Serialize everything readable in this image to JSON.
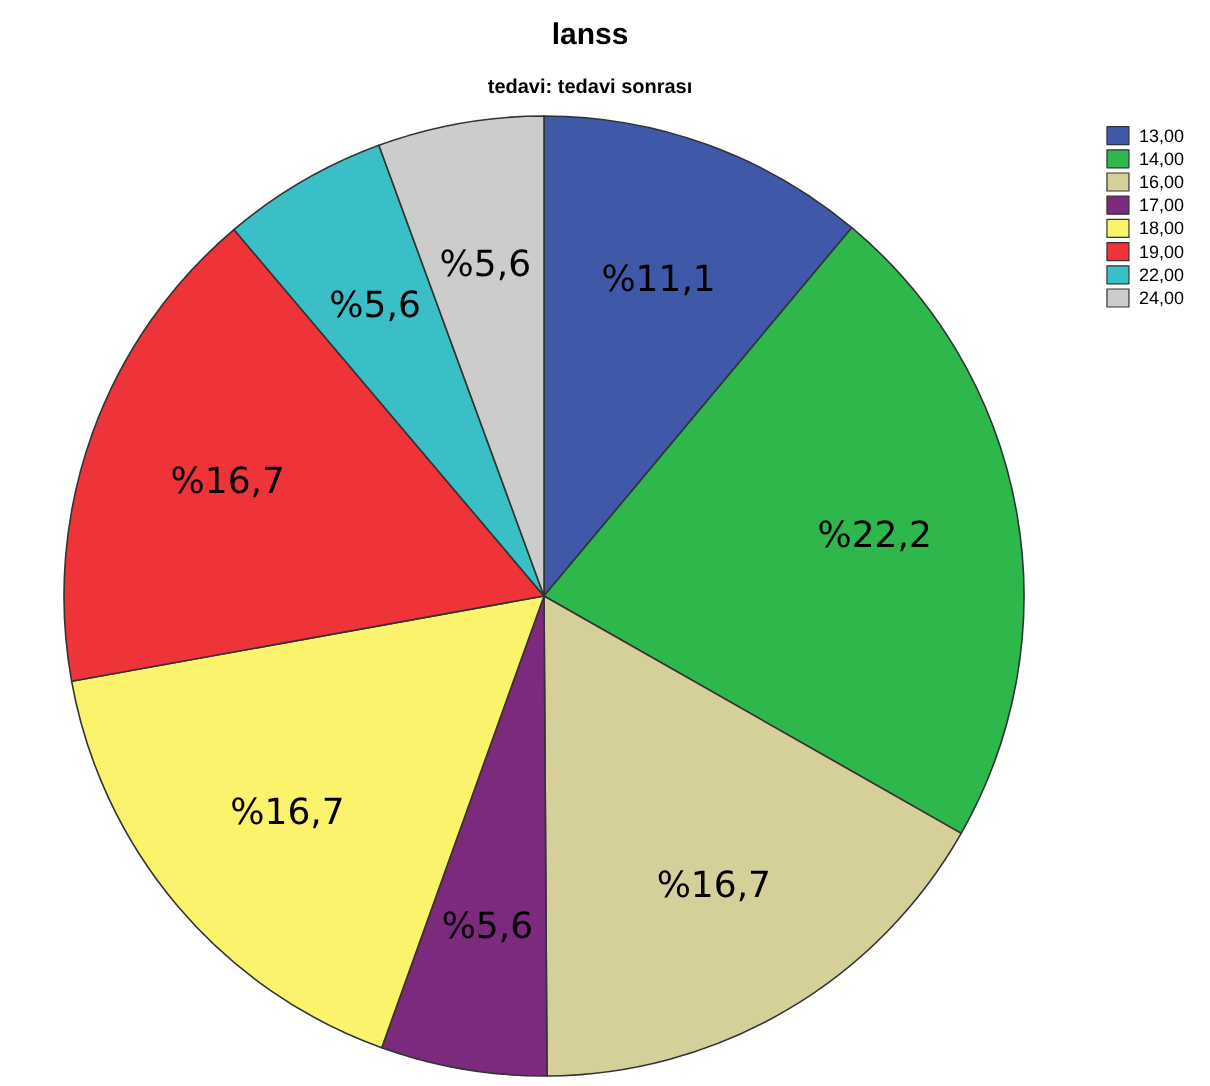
{
  "chart_data": {
    "type": "pie",
    "title": "lanss",
    "subtitle": "tedavi: tedavi sonrası",
    "categories": [
      "13,00",
      "14,00",
      "16,00",
      "17,00",
      "18,00",
      "19,00",
      "22,00",
      "24,00"
    ],
    "values": [
      11.1,
      22.2,
      16.7,
      5.6,
      16.7,
      16.7,
      5.6,
      5.6
    ],
    "colors": [
      "#3f58a8",
      "#2eb84b",
      "#d5cf9a",
      "#7b2a7d",
      "#fbf36c",
      "#ee3339",
      "#3bbfc6",
      "#cccccc"
    ],
    "value_labels": [
      "%11,1",
      "%22,2",
      "%16,7",
      "%5,6",
      "%16,7",
      "%16,7",
      "%5,6",
      "%5,6"
    ],
    "legend": "top right"
  }
}
